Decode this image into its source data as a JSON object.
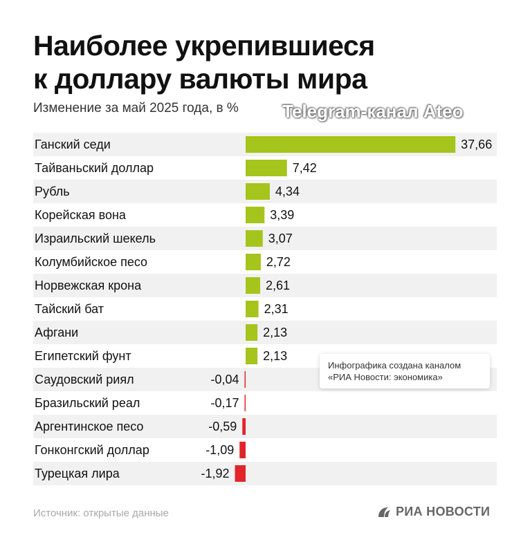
{
  "title": {
    "line1": "Наиболее укрепившиеся",
    "line2": "к доллару валюты мира"
  },
  "subtitle": "Изменение за май 2025 года, в %",
  "watermark": "Telegram-канал Ateo",
  "note": {
    "line1": "Инфографика создана каналом",
    "line2": "«РИА Новости: экономика»"
  },
  "source": "Источник: открытые данные",
  "logo": {
    "text": "РИА НОВОСТИ",
    "icon": "ria-novosti-logo-icon"
  },
  "colors": {
    "positive": "#a5c41c",
    "negative": "#e0262a",
    "row_band": "#f1f1f1",
    "text": "#111111"
  },
  "chart_data": {
    "type": "bar",
    "orientation": "horizontal",
    "categories": [
      "Ганский седи",
      "Тайваньский доллар",
      "Рубль",
      "Корейская вона",
      "Израильский шекель",
      "Колумбийское песо",
      "Норвежская крона",
      "Тайский бат",
      "Афгани",
      "Египетский фунт",
      "Саудовский риял",
      "Бразильский реал",
      "Аргентинское песо",
      "Гонконгский доллар",
      "Турецкая лира"
    ],
    "values": [
      37.66,
      7.42,
      4.34,
      3.39,
      3.07,
      2.72,
      2.61,
      2.31,
      2.13,
      2.13,
      -0.04,
      -0.17,
      -0.59,
      -1.09,
      -1.92
    ],
    "labels": [
      "37,66",
      "7,42",
      "4,34",
      "3,39",
      "3,07",
      "2,72",
      "2,61",
      "2,31",
      "2,13",
      "2,13",
      "-0,04",
      "-0,17",
      "-0,59",
      "-1,09",
      "-1,92"
    ],
    "xlim": [
      -1.92,
      37.66
    ],
    "grid": false,
    "legend": "none"
  }
}
